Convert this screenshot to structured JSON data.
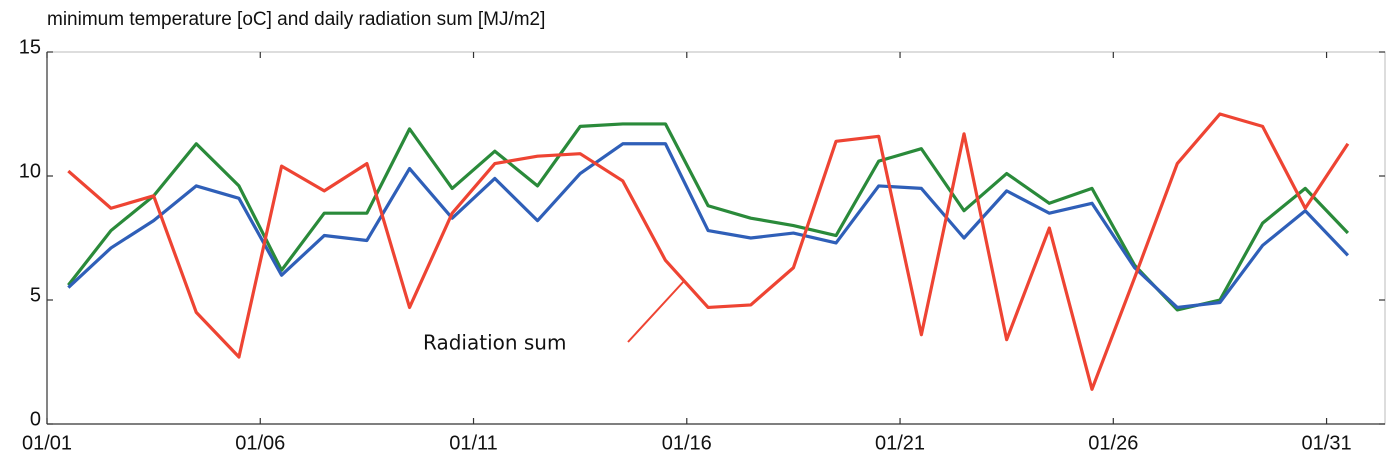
{
  "chart_data": {
    "type": "line",
    "title": "minimum temperature [oC] and daily radiation sum [MJ/m2]",
    "x": [
      0.5,
      1.5,
      2.5,
      3.5,
      4.5,
      5.5,
      6.5,
      7.5,
      8.5,
      9.5,
      10.5,
      11.5,
      12.5,
      13.5,
      14.5,
      15.5,
      16.5,
      17.5,
      18.5,
      19.5,
      20.5,
      21.5,
      22.5,
      23.5,
      24.5,
      25.5,
      26.5,
      27.5,
      28.5,
      29.5,
      30.5
    ],
    "series": [
      {
        "color": "#2a8a3a",
        "values": [
          5.6,
          7.8,
          9.2,
          11.3,
          9.6,
          6.2,
          8.5,
          8.5,
          11.9,
          9.5,
          11.0,
          9.6,
          12.0,
          12.1,
          12.1,
          8.8,
          8.3,
          8.0,
          7.6,
          10.6,
          11.1,
          8.6,
          10.1,
          8.9,
          9.5,
          6.4,
          4.6,
          5.0,
          8.1,
          9.5,
          7.7
        ]
      },
      {
        "color": "#2f5fb8",
        "values": [
          5.5,
          7.1,
          8.2,
          9.6,
          9.1,
          6.0,
          7.6,
          7.4,
          10.3,
          8.3,
          9.9,
          8.2,
          10.1,
          11.3,
          11.3,
          7.8,
          7.5,
          7.7,
          7.3,
          9.6,
          9.5,
          7.5,
          9.4,
          8.5,
          8.9,
          6.3,
          4.7,
          4.9,
          7.2,
          8.6,
          6.8
        ]
      },
      {
        "name": "Radiation sum",
        "color": "#ee4433",
        "values": [
          10.2,
          8.7,
          9.2,
          4.5,
          2.7,
          10.4,
          9.4,
          10.5,
          4.7,
          8.5,
          10.5,
          10.8,
          10.9,
          9.8,
          6.6,
          4.7,
          4.8,
          6.3,
          11.4,
          11.6,
          3.6,
          11.7,
          3.4,
          7.9,
          1.4,
          5.9,
          10.5,
          12.5,
          12.0,
          8.7,
          11.3
        ]
      }
    ],
    "xlim": [
      0,
      31.37
    ],
    "xticks": [
      {
        "value": 0,
        "label": "01/01"
      },
      {
        "value": 5,
        "label": "01/06"
      },
      {
        "value": 10,
        "label": "01/11"
      },
      {
        "value": 15,
        "label": "01/16"
      },
      {
        "value": 20,
        "label": "01/21"
      },
      {
        "value": 25,
        "label": "01/26"
      },
      {
        "value": 30,
        "label": "01/31"
      }
    ],
    "ylim": [
      0,
      15
    ],
    "yticks": [
      0,
      5,
      10,
      15
    ]
  }
}
